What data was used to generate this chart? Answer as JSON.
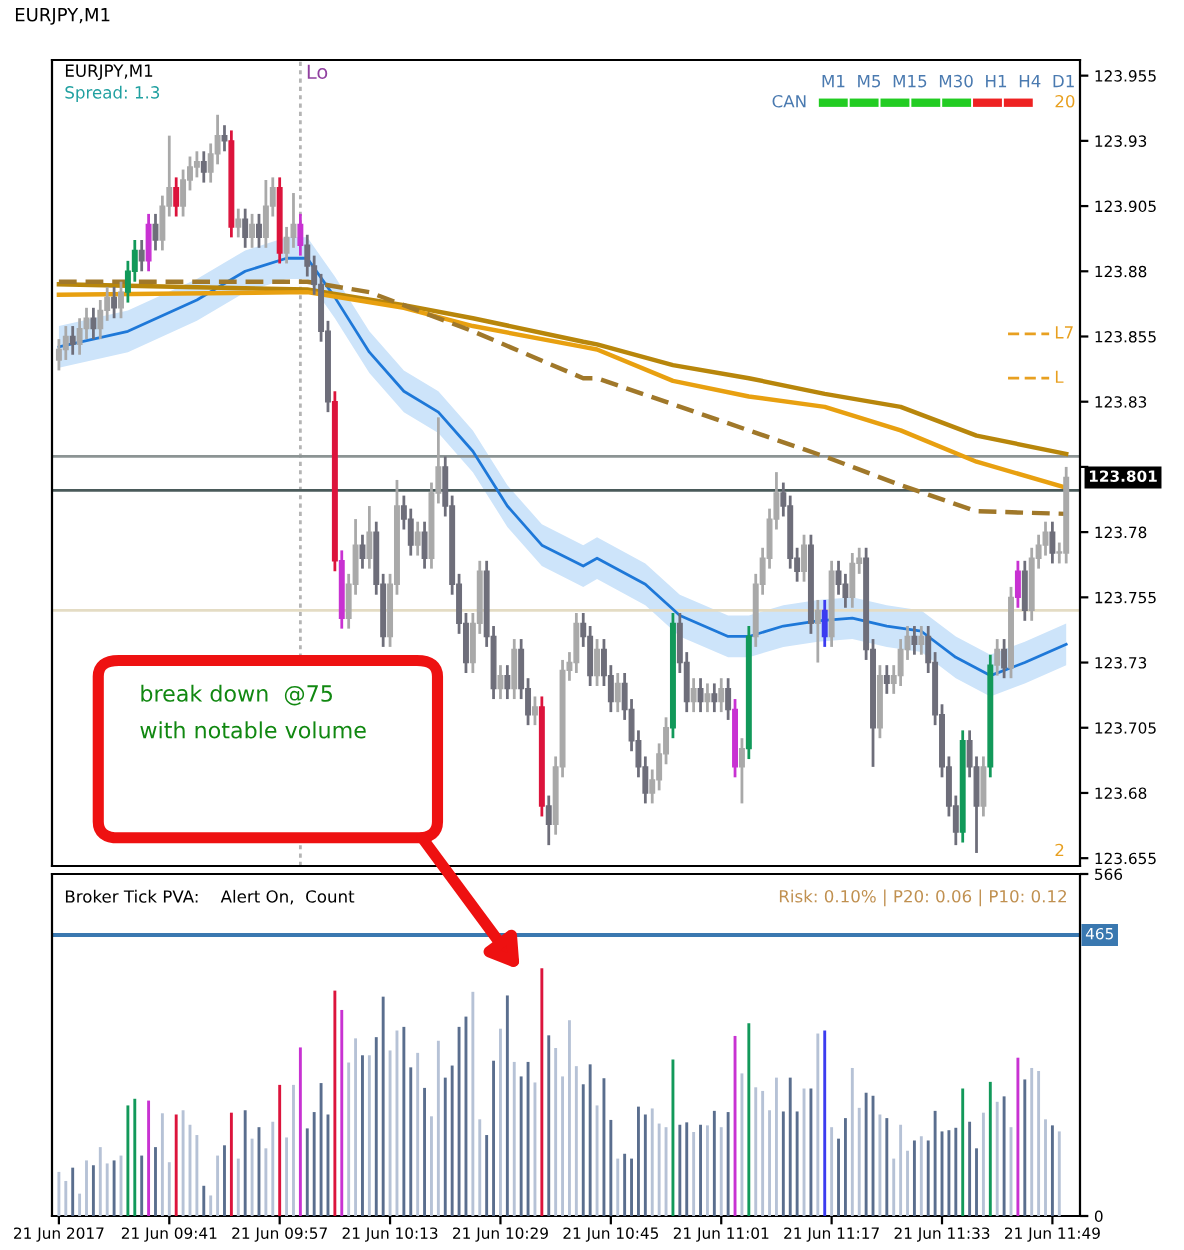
{
  "chart_data": [
    {
      "type": "candlestick",
      "title": "EURJPY,M1",
      "x": [
        "2017-06-21T09:25",
        "2017-06-21T09:26",
        "2017-06-21T09:27",
        "2017-06-21T09:28",
        "2017-06-21T09:29",
        "2017-06-21T09:30",
        "2017-06-21T09:31",
        "2017-06-21T09:32",
        "2017-06-21T09:33",
        "2017-06-21T09:34",
        "2017-06-21T09:35",
        "2017-06-21T09:36",
        "2017-06-21T09:37",
        "2017-06-21T09:38",
        "2017-06-21T09:39",
        "2017-06-21T09:40",
        "2017-06-21T09:41",
        "2017-06-21T09:42",
        "2017-06-21T09:43",
        "2017-06-21T09:44",
        "2017-06-21T09:45",
        "2017-06-21T09:46",
        "2017-06-21T09:47",
        "2017-06-21T09:48",
        "2017-06-21T09:49",
        "2017-06-21T09:50",
        "2017-06-21T09:51",
        "2017-06-21T09:52",
        "2017-06-21T09:53",
        "2017-06-21T09:54",
        "2017-06-21T09:55",
        "2017-06-21T09:56",
        "2017-06-21T09:57",
        "2017-06-21T09:58",
        "2017-06-21T09:59",
        "2017-06-21T10:00",
        "2017-06-21T10:01",
        "2017-06-21T10:02",
        "2017-06-21T10:03",
        "2017-06-21T10:04",
        "2017-06-21T10:05",
        "2017-06-21T10:06",
        "2017-06-21T10:07",
        "2017-06-21T10:08",
        "2017-06-21T10:09",
        "2017-06-21T10:10",
        "2017-06-21T10:11",
        "2017-06-21T10:12",
        "2017-06-21T10:13",
        "2017-06-21T10:14",
        "2017-06-21T10:15",
        "2017-06-21T10:16",
        "2017-06-21T10:17",
        "2017-06-21T10:18",
        "2017-06-21T10:19",
        "2017-06-21T10:20",
        "2017-06-21T10:21",
        "2017-06-21T10:22",
        "2017-06-21T10:23",
        "2017-06-21T10:24",
        "2017-06-21T10:25",
        "2017-06-21T10:26",
        "2017-06-21T10:27",
        "2017-06-21T10:28",
        "2017-06-21T10:29",
        "2017-06-21T10:30",
        "2017-06-21T10:31",
        "2017-06-21T10:32",
        "2017-06-21T10:33",
        "2017-06-21T10:34",
        "2017-06-21T10:35",
        "2017-06-21T10:36",
        "2017-06-21T10:37",
        "2017-06-21T10:38",
        "2017-06-21T10:39",
        "2017-06-21T10:40",
        "2017-06-21T10:41",
        "2017-06-21T10:42",
        "2017-06-21T10:43",
        "2017-06-21T10:44",
        "2017-06-21T10:45",
        "2017-06-21T10:46",
        "2017-06-21T10:47",
        "2017-06-21T10:48",
        "2017-06-21T10:49",
        "2017-06-21T10:50",
        "2017-06-21T10:51",
        "2017-06-21T10:52",
        "2017-06-21T10:53",
        "2017-06-21T10:54",
        "2017-06-21T10:55",
        "2017-06-21T10:56",
        "2017-06-21T10:57",
        "2017-06-21T10:58",
        "2017-06-21T10:59",
        "2017-06-21T11:00",
        "2017-06-21T11:01",
        "2017-06-21T11:02",
        "2017-06-21T11:03",
        "2017-06-21T11:04",
        "2017-06-21T11:05",
        "2017-06-21T11:06",
        "2017-06-21T11:07",
        "2017-06-21T11:08",
        "2017-06-21T11:09",
        "2017-06-21T11:10",
        "2017-06-21T11:11",
        "2017-06-21T11:12",
        "2017-06-21T11:13",
        "2017-06-21T11:14",
        "2017-06-21T11:15",
        "2017-06-21T11:16",
        "2017-06-21T11:17",
        "2017-06-21T11:18",
        "2017-06-21T11:19",
        "2017-06-21T11:20",
        "2017-06-21T11:21",
        "2017-06-21T11:22",
        "2017-06-21T11:23",
        "2017-06-21T11:24",
        "2017-06-21T11:25",
        "2017-06-21T11:26",
        "2017-06-21T11:27",
        "2017-06-21T11:28",
        "2017-06-21T11:29",
        "2017-06-21T11:30",
        "2017-06-21T11:31",
        "2017-06-21T11:32",
        "2017-06-21T11:33",
        "2017-06-21T11:34",
        "2017-06-21T11:35",
        "2017-06-21T11:36",
        "2017-06-21T11:37",
        "2017-06-21T11:38",
        "2017-06-21T11:39",
        "2017-06-21T11:40",
        "2017-06-21T11:41",
        "2017-06-21T11:42",
        "2017-06-21T11:43",
        "2017-06-21T11:44",
        "2017-06-21T11:45",
        "2017-06-21T11:46",
        "2017-06-21T11:47",
        "2017-06-21T11:48",
        "2017-06-21T11:49",
        "2017-06-21T11:50",
        "2017-06-21T11:51"
      ],
      "ohlc": [
        [
          123.846,
          123.854,
          123.842,
          123.85
        ],
        [
          123.85,
          123.859,
          123.846,
          123.855
        ],
        [
          123.855,
          123.859,
          123.848,
          123.852
        ],
        [
          123.852,
          123.862,
          123.848,
          123.858
        ],
        [
          123.858,
          123.866,
          123.854,
          123.862
        ],
        [
          123.862,
          123.866,
          123.854,
          123.858
        ],
        [
          123.858,
          123.869,
          123.854,
          123.865
        ],
        [
          123.865,
          123.874,
          123.861,
          123.87
        ],
        [
          123.87,
          123.874,
          123.862,
          123.866
        ],
        [
          123.866,
          123.876,
          123.862,
          123.872
        ],
        [
          123.872,
          123.884,
          123.868,
          123.88
        ],
        [
          123.88,
          123.892,
          123.876,
          123.888
        ],
        [
          123.888,
          123.892,
          123.88,
          123.884
        ],
        [
          123.884,
          123.902,
          123.88,
          123.898
        ],
        [
          123.898,
          123.902,
          123.888,
          123.892
        ],
        [
          123.892,
          123.909,
          123.888,
          123.905
        ],
        [
          123.905,
          123.932,
          123.901,
          123.912
        ],
        [
          123.912,
          123.916,
          123.901,
          123.905
        ],
        [
          123.905,
          123.919,
          123.901,
          123.915
        ],
        [
          123.915,
          123.924,
          123.911,
          123.92
        ],
        [
          123.92,
          123.926,
          123.916,
          123.922
        ],
        [
          123.922,
          123.926,
          123.914,
          123.918
        ],
        [
          123.918,
          123.929,
          123.914,
          123.925
        ],
        [
          123.925,
          123.94,
          123.921,
          123.932
        ],
        [
          123.932,
          123.936,
          123.926,
          123.93
        ],
        [
          123.93,
          123.934,
          123.893,
          123.897
        ],
        [
          123.897,
          123.904,
          123.893,
          123.9
        ],
        [
          123.9,
          123.904,
          123.889,
          123.893
        ],
        [
          123.893,
          123.902,
          123.889,
          123.898
        ],
        [
          123.898,
          123.902,
          123.889,
          123.893
        ],
        [
          123.893,
          123.915,
          123.889,
          123.905
        ],
        [
          123.905,
          123.916,
          123.901,
          123.912
        ],
        [
          123.912,
          123.916,
          123.883,
          123.887
        ],
        [
          123.887,
          123.897,
          123.883,
          123.893
        ],
        [
          123.893,
          123.91,
          123.889,
          123.898
        ],
        [
          123.898,
          123.902,
          123.886,
          123.89
        ],
        [
          123.89,
          123.894,
          123.878,
          123.882
        ],
        [
          123.882,
          123.886,
          123.871,
          123.875
        ],
        [
          123.875,
          123.879,
          123.853,
          123.857
        ],
        [
          123.857,
          123.861,
          123.826,
          123.83
        ],
        [
          123.83,
          123.834,
          123.765,
          123.769
        ],
        [
          123.769,
          123.773,
          123.743,
          123.747
        ],
        [
          123.747,
          123.764,
          123.743,
          123.76
        ],
        [
          123.76,
          123.785,
          123.756,
          123.775
        ],
        [
          123.775,
          123.779,
          123.766,
          123.77
        ],
        [
          123.77,
          123.79,
          123.766,
          123.78
        ],
        [
          123.78,
          123.784,
          123.756,
          123.76
        ],
        [
          123.76,
          123.764,
          123.736,
          123.74
        ],
        [
          123.74,
          123.764,
          123.736,
          123.76
        ],
        [
          123.76,
          123.8,
          123.756,
          123.79
        ],
        [
          123.79,
          123.794,
          123.781,
          123.785
        ],
        [
          123.785,
          123.789,
          123.771,
          123.775
        ],
        [
          123.775,
          123.784,
          123.771,
          123.78
        ],
        [
          123.78,
          123.784,
          123.766,
          123.77
        ],
        [
          123.77,
          123.799,
          123.766,
          123.795
        ],
        [
          123.795,
          123.824,
          123.791,
          123.805
        ],
        [
          123.805,
          123.809,
          123.786,
          123.79
        ],
        [
          123.79,
          123.794,
          123.756,
          123.76
        ],
        [
          123.76,
          123.764,
          123.741,
          123.745
        ],
        [
          123.745,
          123.749,
          123.726,
          123.73
        ],
        [
          123.73,
          123.749,
          123.726,
          123.745
        ],
        [
          123.745,
          123.769,
          123.741,
          123.765
        ],
        [
          123.765,
          123.769,
          123.736,
          123.74
        ],
        [
          123.74,
          123.744,
          123.716,
          123.72
        ],
        [
          123.72,
          123.729,
          123.716,
          123.725
        ],
        [
          123.725,
          123.729,
          123.716,
          123.72
        ],
        [
          123.72,
          123.739,
          123.716,
          123.735
        ],
        [
          123.735,
          123.739,
          123.716,
          123.72
        ],
        [
          123.72,
          123.724,
          123.706,
          123.71
        ],
        [
          123.71,
          123.717,
          123.706,
          123.713
        ],
        [
          123.713,
          123.717,
          123.671,
          123.675
        ],
        [
          123.675,
          123.679,
          123.66,
          123.668
        ],
        [
          123.668,
          123.694,
          123.664,
          123.69
        ],
        [
          123.69,
          123.731,
          123.686,
          123.727
        ],
        [
          123.727,
          123.734,
          123.723,
          123.73
        ],
        [
          123.73,
          123.749,
          123.726,
          123.745
        ],
        [
          123.745,
          123.749,
          123.736,
          123.74
        ],
        [
          123.74,
          123.744,
          123.721,
          123.725
        ],
        [
          123.725,
          123.739,
          123.721,
          123.735
        ],
        [
          123.735,
          123.739,
          123.721,
          123.725
        ],
        [
          123.725,
          123.729,
          123.711,
          123.715
        ],
        [
          123.715,
          123.726,
          123.711,
          123.722
        ],
        [
          123.722,
          123.726,
          123.708,
          123.712
        ],
        [
          123.712,
          123.716,
          123.696,
          123.7
        ],
        [
          123.7,
          123.704,
          123.686,
          123.69
        ],
        [
          123.69,
          123.694,
          123.676,
          123.68
        ],
        [
          123.68,
          123.689,
          123.676,
          123.685
        ],
        [
          123.685,
          123.699,
          123.681,
          123.695
        ],
        [
          123.695,
          123.709,
          123.691,
          123.705
        ],
        [
          123.705,
          123.749,
          123.701,
          123.745
        ],
        [
          123.745,
          123.749,
          123.726,
          123.73
        ],
        [
          123.73,
          123.734,
          123.711,
          123.715
        ],
        [
          123.715,
          123.724,
          123.711,
          123.72
        ],
        [
          123.72,
          123.724,
          123.711,
          123.715
        ],
        [
          123.715,
          123.722,
          123.711,
          123.718
        ],
        [
          123.718,
          123.722,
          123.711,
          123.715
        ],
        [
          123.715,
          123.724,
          123.711,
          123.72
        ],
        [
          123.72,
          123.724,
          123.708,
          123.712
        ],
        [
          123.712,
          123.716,
          123.686,
          123.69
        ],
        [
          123.69,
          123.701,
          123.676,
          123.697
        ],
        [
          123.697,
          123.744,
          123.693,
          123.74
        ],
        [
          123.74,
          123.764,
          123.736,
          123.76
        ],
        [
          123.76,
          123.774,
          123.756,
          123.77
        ],
        [
          123.77,
          123.789,
          123.766,
          123.785
        ],
        [
          123.785,
          123.803,
          123.781,
          123.795
        ],
        [
          123.795,
          123.799,
          123.786,
          123.79
        ],
        [
          123.79,
          123.794,
          123.766,
          123.77
        ],
        [
          123.77,
          123.774,
          123.761,
          123.765
        ],
        [
          123.765,
          123.779,
          123.761,
          123.775
        ],
        [
          123.775,
          123.779,
          123.741,
          123.745
        ],
        [
          123.745,
          123.754,
          123.73,
          123.75
        ],
        [
          123.75,
          123.754,
          123.736,
          123.74
        ],
        [
          123.74,
          123.769,
          123.736,
          123.765
        ],
        [
          123.765,
          123.769,
          123.756,
          123.76
        ],
        [
          123.76,
          123.764,
          123.751,
          123.755
        ],
        [
          123.755,
          123.772,
          123.751,
          123.768
        ],
        [
          123.768,
          123.774,
          123.764,
          123.77
        ],
        [
          123.77,
          123.774,
          123.731,
          123.735
        ],
        [
          123.735,
          123.739,
          123.69,
          123.705
        ],
        [
          123.705,
          123.729,
          123.701,
          123.725
        ],
        [
          123.725,
          123.729,
          123.718,
          123.722
        ],
        [
          123.722,
          123.729,
          123.718,
          123.725
        ],
        [
          123.725,
          123.739,
          123.721,
          123.735
        ],
        [
          123.735,
          123.744,
          123.731,
          123.74
        ],
        [
          123.74,
          123.744,
          123.733,
          123.737
        ],
        [
          123.737,
          123.744,
          123.733,
          123.74
        ],
        [
          123.74,
          123.744,
          123.726,
          123.73
        ],
        [
          123.73,
          123.734,
          123.706,
          123.71
        ],
        [
          123.71,
          123.714,
          123.686,
          123.69
        ],
        [
          123.69,
          123.694,
          123.671,
          123.675
        ],
        [
          123.675,
          123.679,
          123.66,
          123.665
        ],
        [
          123.665,
          123.704,
          123.661,
          123.7
        ],
        [
          123.7,
          123.704,
          123.686,
          123.69
        ],
        [
          123.69,
          123.694,
          123.657,
          123.675
        ],
        [
          123.675,
          123.694,
          123.671,
          123.69
        ],
        [
          123.69,
          123.733,
          123.686,
          123.729
        ],
        [
          123.729,
          123.739,
          123.725,
          123.735
        ],
        [
          123.735,
          123.739,
          123.724,
          123.728
        ],
        [
          123.728,
          123.759,
          123.724,
          123.755
        ],
        [
          123.755,
          123.769,
          123.751,
          123.765
        ],
        [
          123.765,
          123.769,
          123.746,
          123.75
        ],
        [
          123.75,
          123.774,
          123.746,
          123.77
        ],
        [
          123.77,
          123.779,
          123.766,
          123.775
        ],
        [
          123.775,
          123.784,
          123.771,
          123.78
        ],
        [
          123.78,
          123.784,
          123.768,
          123.772
        ],
        [
          123.772,
          123.776,
          123.768,
          123.772
        ],
        [
          123.772,
          123.805,
          123.768,
          123.801
        ]
      ],
      "colors": [
        "#a9a9a9",
        "#a9a9a9",
        "#6e6e7a",
        "#a9a9a9",
        "#a9a9a9",
        "#6e6e7a",
        "#a9a9a9",
        "#a9a9a9",
        "#6e6e7a",
        "#a9a9a9",
        "#12995a",
        "#12995a",
        "#6e6e7a",
        "#c832d2",
        "#6e6e7a",
        "#a9a9a9",
        "#a9a9a9",
        "#dc143c",
        "#a9a9a9",
        "#a9a9a9",
        "#a9a9a9",
        "#6e6e7a",
        "#a9a9a9",
        "#a9a9a9",
        "#6e6e7a",
        "#dc143c",
        "#a9a9a9",
        "#6e6e7a",
        "#a9a9a9",
        "#6e6e7a",
        "#a9a9a9",
        "#a9a9a9",
        "#dc143c",
        "#a9a9a9",
        "#a9a9a9",
        "#c832d2",
        "#6e6e7a",
        "#6e6e7a",
        "#6e6e7a",
        "#6e6e7a",
        "#dc143c",
        "#c832d2",
        "#a9a9a9",
        "#a9a9a9",
        "#6e6e7a",
        "#a9a9a9",
        "#6e6e7a",
        "#6e6e7a",
        "#a9a9a9",
        "#a9a9a9",
        "#6e6e7a",
        "#6e6e7a",
        "#a9a9a9",
        "#6e6e7a",
        "#a9a9a9",
        "#a9a9a9",
        "#6e6e7a",
        "#6e6e7a",
        "#6e6e7a",
        "#6e6e7a",
        "#a9a9a9",
        "#a9a9a9",
        "#6e6e7a",
        "#6e6e7a",
        "#a9a9a9",
        "#6e6e7a",
        "#a9a9a9",
        "#6e6e7a",
        "#6e6e7a",
        "#a9a9a9",
        "#dc143c",
        "#6e6e7a",
        "#a9a9a9",
        "#a9a9a9",
        "#a9a9a9",
        "#a9a9a9",
        "#6e6e7a",
        "#6e6e7a",
        "#a9a9a9",
        "#6e6e7a",
        "#6e6e7a",
        "#a9a9a9",
        "#6e6e7a",
        "#6e6e7a",
        "#6e6e7a",
        "#6e6e7a",
        "#a9a9a9",
        "#a9a9a9",
        "#a9a9a9",
        "#12995a",
        "#6e6e7a",
        "#6e6e7a",
        "#a9a9a9",
        "#6e6e7a",
        "#a9a9a9",
        "#6e6e7a",
        "#a9a9a9",
        "#6e6e7a",
        "#c832d2",
        "#a9a9a9",
        "#12995a",
        "#a9a9a9",
        "#a9a9a9",
        "#a9a9a9",
        "#a9a9a9",
        "#6e6e7a",
        "#6e6e7a",
        "#6e6e7a",
        "#a9a9a9",
        "#6e6e7a",
        "#a9a9a9",
        "#3c3cf0",
        "#a9a9a9",
        "#6e6e7a",
        "#6e6e7a",
        "#a9a9a9",
        "#a9a9a9",
        "#6e6e7a",
        "#6e6e7a",
        "#a9a9a9",
        "#6e6e7a",
        "#a9a9a9",
        "#a9a9a9",
        "#a9a9a9",
        "#6e6e7a",
        "#a9a9a9",
        "#6e6e7a",
        "#6e6e7a",
        "#6e6e7a",
        "#6e6e7a",
        "#6e6e7a",
        "#12995a",
        "#6e6e7a",
        "#6e6e7a",
        "#a9a9a9",
        "#12995a",
        "#a9a9a9",
        "#6e6e7a",
        "#a9a9a9",
        "#c832d2",
        "#6e6e7a",
        "#a9a9a9",
        "#a9a9a9",
        "#a9a9a9",
        "#6e6e7a",
        "#a9a9a9",
        "#a9a9a9"
      ],
      "series": [
        {
          "type": "line",
          "color": "#1e78d8",
          "x": [
            "2017-06-21T09:25",
            "2017-06-21T09:35",
            "2017-06-21T09:45",
            "2017-06-21T09:52",
            "2017-06-21T09:58",
            "2017-06-21T10:01",
            "2017-06-21T10:05",
            "2017-06-21T10:10",
            "2017-06-21T10:15",
            "2017-06-21T10:20",
            "2017-06-21T10:25",
            "2017-06-21T10:30",
            "2017-06-21T10:35",
            "2017-06-21T10:41",
            "2017-06-21T10:43",
            "2017-06-21T10:50",
            "2017-06-21T10:55",
            "2017-06-21T11:02",
            "2017-06-21T11:05",
            "2017-06-21T11:10",
            "2017-06-21T11:15",
            "2017-06-21T11:20",
            "2017-06-21T11:25",
            "2017-06-21T11:30",
            "2017-06-21T11:35",
            "2017-06-21T11:40",
            "2017-06-21T11:45",
            "2017-06-21T11:51"
          ],
          "values": [
            123.851,
            123.857,
            123.869,
            123.88,
            123.885,
            123.885,
            123.87,
            123.849,
            123.834,
            123.826,
            123.811,
            123.79,
            123.775,
            123.767,
            123.77,
            123.76,
            123.748,
            123.74,
            123.74,
            123.744,
            123.746,
            123.747,
            123.744,
            123.742,
            123.732,
            123.725,
            123.73,
            123.737
          ],
          "lower": [
            123.843,
            123.849,
            123.861,
            123.872,
            123.877,
            123.877,
            123.862,
            123.841,
            123.826,
            123.818,
            123.803,
            123.782,
            123.767,
            123.759,
            123.762,
            123.752,
            123.74,
            123.732,
            123.732,
            123.736,
            123.738,
            123.739,
            123.736,
            123.734,
            123.724,
            123.717,
            123.722,
            123.729
          ],
          "upper": [
            123.859,
            123.865,
            123.877,
            123.888,
            123.893,
            123.893,
            123.878,
            123.857,
            123.842,
            123.834,
            123.819,
            123.798,
            123.783,
            123.775,
            123.778,
            123.768,
            123.756,
            123.748,
            123.748,
            123.752,
            123.754,
            123.755,
            123.752,
            123.75,
            123.74,
            123.733,
            123.738,
            123.745
          ]
        },
        {
          "type": "line",
          "color": "#b8860b",
          "x": [
            "2017-06-21T09:25",
            "2017-06-21T10:01",
            "2017-06-21T10:15",
            "2017-06-21T10:25",
            "2017-06-21T10:41",
            "2017-06-21T10:43",
            "2017-06-21T10:54",
            "2017-06-21T11:05",
            "2017-06-21T11:16",
            "2017-06-21T11:27",
            "2017-06-21T11:38",
            "2017-06-21T11:51"
          ],
          "values": [
            123.875,
            123.873,
            123.867,
            123.862,
            123.853,
            123.852,
            123.844,
            123.839,
            123.833,
            123.828,
            123.817,
            123.81
          ]
        },
        {
          "type": "line",
          "color": "#e8a010",
          "x": [
            "2017-06-21T09:25",
            "2017-06-21T10:01",
            "2017-06-21T10:15",
            "2017-06-21T10:25",
            "2017-06-21T10:41",
            "2017-06-21T10:43",
            "2017-06-21T10:54",
            "2017-06-21T11:05",
            "2017-06-21T11:16",
            "2017-06-21T11:27",
            "2017-06-21T11:38",
            "2017-06-21T11:51"
          ],
          "values": [
            123.871,
            123.872,
            123.866,
            123.859,
            123.851,
            123.85,
            123.838,
            123.832,
            123.828,
            123.819,
            123.807,
            123.797
          ]
        },
        {
          "type": "line",
          "color": "#a0782a",
          "line_style": "dashed",
          "x": [
            "2017-06-21T09:25",
            "2017-06-21T10:01",
            "2017-06-21T10:10",
            "2017-06-21T10:25",
            "2017-06-21T10:41",
            "2017-06-21T10:43",
            "2017-06-21T10:54",
            "2017-06-21T11:05",
            "2017-06-21T11:16",
            "2017-06-21T11:27",
            "2017-06-21T11:38",
            "2017-06-21T11:51"
          ],
          "values": [
            123.876,
            123.876,
            123.872,
            123.857,
            123.839,
            123.839,
            123.829,
            123.819,
            123.809,
            123.798,
            123.788,
            123.787
          ]
        }
      ],
      "ylim": [
        123.652,
        123.961
      ],
      "yticks": [
        123.655,
        123.68,
        123.705,
        123.73,
        123.755,
        123.78,
        {
          "value": 123.805,
          "label": null
        },
        123.83,
        123.855,
        123.88,
        123.905,
        123.93,
        123.955
      ],
      "xlim": [
        "2017-06-21T09:24",
        "2017-06-21T11:53"
      ],
      "tick_labels": "y",
      "ref_lines": [
        {
          "axis": "y",
          "value": 123.809,
          "color": "#8c9494"
        },
        {
          "axis": "y",
          "value": 123.796,
          "color": "#4a5a5a"
        },
        {
          "axis": "y",
          "value": 123.75,
          "color": "#e4dcc4"
        },
        {
          "axis": "x",
          "value": "2017-06-21T10:00",
          "label": "Lo",
          "color": "#b4b4b4",
          "line_style": "dotted"
        },
        {
          "axis": "y",
          "value": 123.856,
          "label": "L7",
          "color": "#e8a020",
          "line_style": "dashed"
        },
        {
          "axis": "y",
          "value": 123.839,
          "label": "L",
          "color": "#e8a020",
          "line_style": "dashed"
        }
      ],
      "annotations": [
        "EURJPY,M1",
        "Spread: 1.3",
        "CAN",
        "M1  M5  M15  M30  H1  H4  D1",
        "20",
        "2",
        "123.801"
      ]
    },
    {
      "type": "bar",
      "x": [
        "2017-06-21T09:25",
        "2017-06-21T09:26",
        "2017-06-21T09:27",
        "2017-06-21T09:28",
        "2017-06-21T09:29",
        "2017-06-21T09:30",
        "2017-06-21T09:31",
        "2017-06-21T09:32",
        "2017-06-21T09:33",
        "2017-06-21T09:34",
        "2017-06-21T09:35",
        "2017-06-21T09:36",
        "2017-06-21T09:37",
        "2017-06-21T09:38",
        "2017-06-21T09:39",
        "2017-06-21T09:40",
        "2017-06-21T09:41",
        "2017-06-21T09:42",
        "2017-06-21T09:43",
        "2017-06-21T09:44",
        "2017-06-21T09:45",
        "2017-06-21T09:46",
        "2017-06-21T09:47",
        "2017-06-21T09:48",
        "2017-06-21T09:49",
        "2017-06-21T09:50",
        "2017-06-21T09:51",
        "2017-06-21T09:52",
        "2017-06-21T09:53",
        "2017-06-21T09:54",
        "2017-06-21T09:55",
        "2017-06-21T09:56",
        "2017-06-21T09:57",
        "2017-06-21T09:58",
        "2017-06-21T09:59",
        "2017-06-21T10:00",
        "2017-06-21T10:01",
        "2017-06-21T10:02",
        "2017-06-21T10:03",
        "2017-06-21T10:04",
        "2017-06-21T10:05",
        "2017-06-21T10:06",
        "2017-06-21T10:07",
        "2017-06-21T10:08",
        "2017-06-21T10:09",
        "2017-06-21T10:10",
        "2017-06-21T10:11",
        "2017-06-21T10:12",
        "2017-06-21T10:13",
        "2017-06-21T10:14",
        "2017-06-21T10:15",
        "2017-06-21T10:16",
        "2017-06-21T10:17",
        "2017-06-21T10:18",
        "2017-06-21T10:19",
        "2017-06-21T10:20",
        "2017-06-21T10:21",
        "2017-06-21T10:22",
        "2017-06-21T10:23",
        "2017-06-21T10:24",
        "2017-06-21T10:25",
        "2017-06-21T10:26",
        "2017-06-21T10:27",
        "2017-06-21T10:28",
        "2017-06-21T10:29",
        "2017-06-21T10:30",
        "2017-06-21T10:31",
        "2017-06-21T10:32",
        "2017-06-21T10:33",
        "2017-06-21T10:34",
        "2017-06-21T10:35",
        "2017-06-21T10:36",
        "2017-06-21T10:37",
        "2017-06-21T10:38",
        "2017-06-21T10:39",
        "2017-06-21T10:40",
        "2017-06-21T10:41",
        "2017-06-21T10:42",
        "2017-06-21T10:43",
        "2017-06-21T10:44",
        "2017-06-21T10:45",
        "2017-06-21T10:46",
        "2017-06-21T10:47",
        "2017-06-21T10:48",
        "2017-06-21T10:49",
        "2017-06-21T10:50",
        "2017-06-21T10:51",
        "2017-06-21T10:52",
        "2017-06-21T10:53",
        "2017-06-21T10:54",
        "2017-06-21T10:55",
        "2017-06-21T10:56",
        "2017-06-21T10:57",
        "2017-06-21T10:58",
        "2017-06-21T10:59",
        "2017-06-21T11:00",
        "2017-06-21T11:01",
        "2017-06-21T11:02",
        "2017-06-21T11:03",
        "2017-06-21T11:04",
        "2017-06-21T11:05",
        "2017-06-21T11:06",
        "2017-06-21T11:07",
        "2017-06-21T11:08",
        "2017-06-21T11:09",
        "2017-06-21T11:10",
        "2017-06-21T11:11",
        "2017-06-21T11:12",
        "2017-06-21T11:13",
        "2017-06-21T11:14",
        "2017-06-21T11:15",
        "2017-06-21T11:16",
        "2017-06-21T11:17",
        "2017-06-21T11:18",
        "2017-06-21T11:19",
        "2017-06-21T11:20",
        "2017-06-21T11:21",
        "2017-06-21T11:22",
        "2017-06-21T11:23",
        "2017-06-21T11:24",
        "2017-06-21T11:25",
        "2017-06-21T11:26",
        "2017-06-21T11:27",
        "2017-06-21T11:28",
        "2017-06-21T11:29",
        "2017-06-21T11:30",
        "2017-06-21T11:31",
        "2017-06-21T11:32",
        "2017-06-21T11:33",
        "2017-06-21T11:34",
        "2017-06-21T11:35",
        "2017-06-21T11:36",
        "2017-06-21T11:37",
        "2017-06-21T11:38",
        "2017-06-21T11:39",
        "2017-06-21T11:40",
        "2017-06-21T11:41",
        "2017-06-21T11:42",
        "2017-06-21T11:43",
        "2017-06-21T11:44",
        "2017-06-21T11:45",
        "2017-06-21T11:46",
        "2017-06-21T11:47",
        "2017-06-21T11:48",
        "2017-06-21T11:49",
        "2017-06-21T11:50"
      ],
      "values": [
        73,
        58,
        80,
        37,
        92,
        84,
        114,
        87,
        92,
        100,
        183,
        194,
        100,
        191,
        114,
        170,
        89,
        168,
        175,
        151,
        134,
        50,
        34,
        100,
        117,
        171,
        95,
        175,
        128,
        147,
        112,
        156,
        217,
        130,
        217,
        279,
        145,
        172,
        220,
        168,
        373,
        341,
        254,
        294,
        266,
        266,
        296,
        363,
        274,
        307,
        313,
        246,
        270,
        212,
        165,
        290,
        229,
        249,
        313,
        330,
        371,
        160,
        134,
        257,
        310,
        365,
        255,
        231,
        255,
        221,
        410,
        299,
        278,
        231,
        324,
        248,
        218,
        251,
        183,
        228,
        159,
        95,
        103,
        95,
        181,
        168,
        178,
        153,
        147,
        259,
        151,
        155,
        139,
        151,
        150,
        174,
        147,
        172,
        298,
        236,
        319,
        213,
        207,
        175,
        229,
        173,
        229,
        173,
        211,
        211,
        302,
        307,
        147,
        128,
        162,
        245,
        179,
        204,
        199,
        168,
        162,
        95,
        151,
        108,
        125,
        132,
        125,
        174,
        140,
        142,
        146,
        211,
        156,
        112,
        171,
        222,
        189,
        198,
        147,
        262,
        226,
        245,
        240,
        160,
        150,
        140
      ],
      "colors": [
        "#b6c2d6",
        "#b6c2d6",
        "#5a6e8e",
        "#b6c2d6",
        "#b6c2d6",
        "#5a6e8e",
        "#b6c2d6",
        "#b6c2d6",
        "#5a6e8e",
        "#b6c2d6",
        "#12995a",
        "#12995a",
        "#5a6e8e",
        "#c832d2",
        "#5a6e8e",
        "#b6c2d6",
        "#b6c2d6",
        "#dc143c",
        "#b6c2d6",
        "#b6c2d6",
        "#b6c2d6",
        "#5a6e8e",
        "#b6c2d6",
        "#b6c2d6",
        "#5a6e8e",
        "#dc143c",
        "#b6c2d6",
        "#5a6e8e",
        "#b6c2d6",
        "#5a6e8e",
        "#b6c2d6",
        "#b6c2d6",
        "#dc143c",
        "#b6c2d6",
        "#b6c2d6",
        "#c832d2",
        "#5a6e8e",
        "#5a6e8e",
        "#5a6e8e",
        "#5a6e8e",
        "#dc143c",
        "#c832d2",
        "#b6c2d6",
        "#b6c2d6",
        "#5a6e8e",
        "#b6c2d6",
        "#5a6e8e",
        "#5a6e8e",
        "#b6c2d6",
        "#b6c2d6",
        "#5a6e8e",
        "#5a6e8e",
        "#b6c2d6",
        "#5a6e8e",
        "#b6c2d6",
        "#b6c2d6",
        "#5a6e8e",
        "#5a6e8e",
        "#5a6e8e",
        "#5a6e8e",
        "#b6c2d6",
        "#b6c2d6",
        "#5a6e8e",
        "#5a6e8e",
        "#b6c2d6",
        "#5a6e8e",
        "#b6c2d6",
        "#5a6e8e",
        "#5a6e8e",
        "#b6c2d6",
        "#dc143c",
        "#5a6e8e",
        "#b6c2d6",
        "#b6c2d6",
        "#b6c2d6",
        "#b6c2d6",
        "#5a6e8e",
        "#5a6e8e",
        "#b6c2d6",
        "#5a6e8e",
        "#5a6e8e",
        "#b6c2d6",
        "#5a6e8e",
        "#5a6e8e",
        "#5a6e8e",
        "#5a6e8e",
        "#b6c2d6",
        "#b6c2d6",
        "#b6c2d6",
        "#12995a",
        "#5a6e8e",
        "#5a6e8e",
        "#b6c2d6",
        "#5a6e8e",
        "#b6c2d6",
        "#5a6e8e",
        "#b6c2d6",
        "#5a6e8e",
        "#c832d2",
        "#b6c2d6",
        "#12995a",
        "#b6c2d6",
        "#b6c2d6",
        "#b6c2d6",
        "#b6c2d6",
        "#5a6e8e",
        "#5a6e8e",
        "#5a6e8e",
        "#b6c2d6",
        "#5a6e8e",
        "#b6c2d6",
        "#3c3cf0",
        "#b6c2d6",
        "#5a6e8e",
        "#5a6e8e",
        "#b6c2d6",
        "#b6c2d6",
        "#5a6e8e",
        "#5a6e8e",
        "#b6c2d6",
        "#5a6e8e",
        "#b6c2d6",
        "#b6c2d6",
        "#b6c2d6",
        "#5a6e8e",
        "#b6c2d6",
        "#5a6e8e",
        "#5a6e8e",
        "#5a6e8e",
        "#5a6e8e",
        "#5a6e8e",
        "#12995a",
        "#5a6e8e",
        "#5a6e8e",
        "#b6c2d6",
        "#12995a",
        "#b6c2d6",
        "#5a6e8e",
        "#b6c2d6",
        "#c832d2",
        "#5a6e8e",
        "#b6c2d6",
        "#b6c2d6",
        "#b6c2d6",
        "#5a6e8e",
        "#b6c2d6"
      ],
      "ylim": [
        0,
        566
      ],
      "yticks": [
        0,
        566
      ],
      "xlim": [
        "2017-06-21T09:24",
        "2017-06-21T11:53"
      ],
      "xticks": [
        {
          "value": "2017-06-21T09:25",
          "label": "21 Jun 2017"
        },
        {
          "value": "2017-06-21T09:41",
          "label": "21 Jun 09:41"
        },
        {
          "value": "2017-06-21T09:57",
          "label": "21 Jun 09:57"
        },
        {
          "value": "2017-06-21T10:13",
          "label": "21 Jun 10:13"
        },
        {
          "value": "2017-06-21T10:29",
          "label": "21 Jun 10:29"
        },
        {
          "value": "2017-06-21T10:45",
          "label": "21 Jun 10:45"
        },
        {
          "value": "2017-06-21T11:01",
          "label": "21 Jun 11:01"
        },
        {
          "value": "2017-06-21T11:17",
          "label": "21 Jun 11:17"
        },
        {
          "value": "2017-06-21T11:33",
          "label": "21 Jun 11:33"
        },
        {
          "value": "2017-06-21T11:49",
          "label": "21 Jun 11:49"
        }
      ],
      "ref_lines": [
        {
          "axis": "y",
          "value": 465,
          "label": "465",
          "color": "#3a78b0"
        }
      ],
      "annotations": [
        "Broker Tick PVA:    Alert On,  Count",
        "Risk: 0.10% | P20: 0.06 | P10: 0.12",
        "break down  @75\nwith notable volume"
      ]
    }
  ]
}
